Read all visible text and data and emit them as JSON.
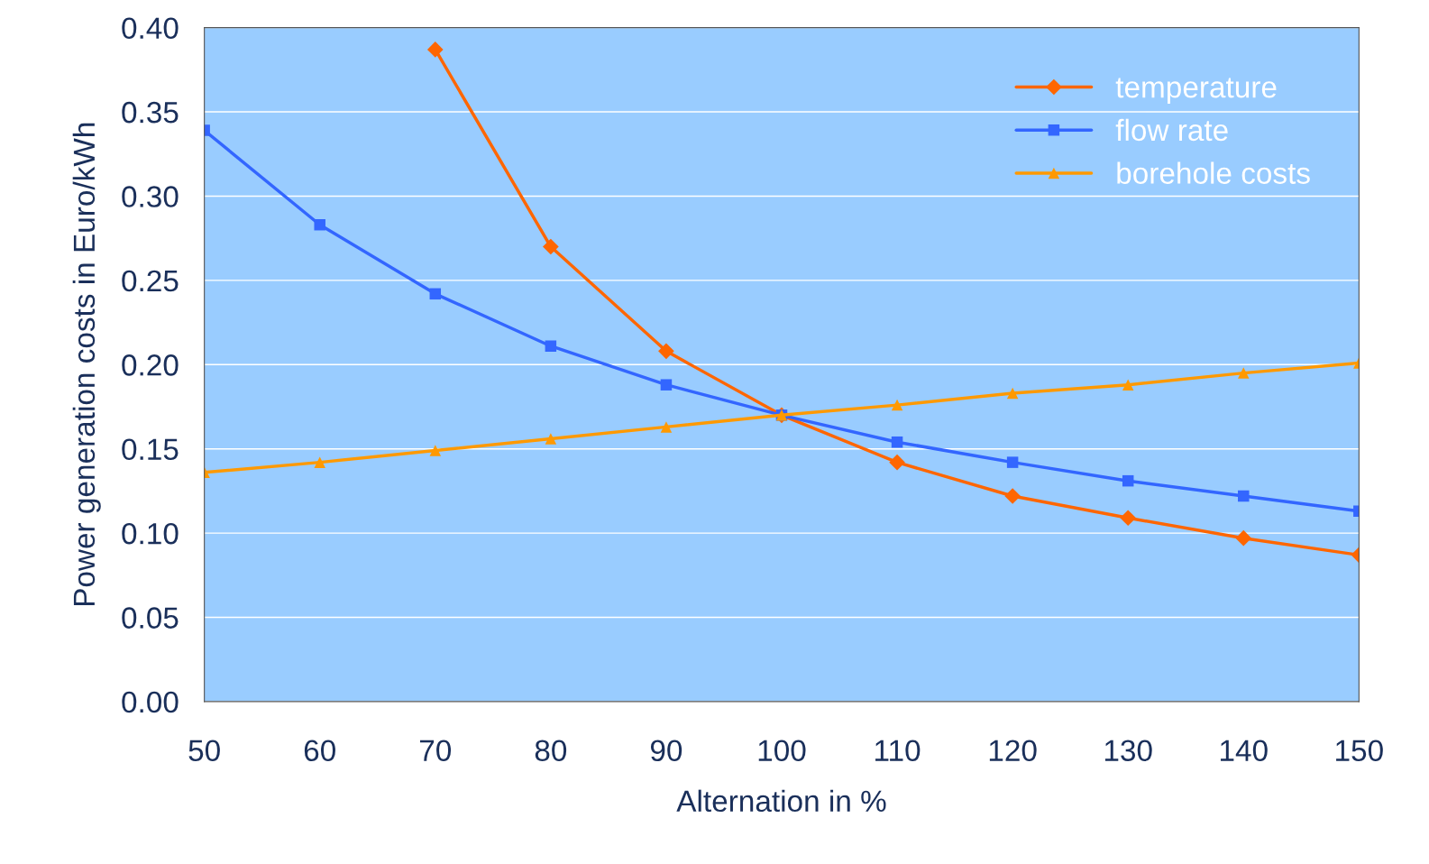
{
  "chart_data": {
    "type": "line",
    "xlabel": "Alternation in %",
    "ylabel": "Power generation costs in Euro/kWh",
    "x": [
      50,
      60,
      70,
      80,
      90,
      100,
      110,
      120,
      130,
      140,
      150
    ],
    "series": [
      {
        "name": "temperature",
        "color": "#ff6600",
        "marker": "diamond",
        "values": [
          null,
          null,
          0.387,
          0.27,
          0.208,
          0.17,
          0.142,
          0.122,
          0.109,
          0.097,
          0.087
        ]
      },
      {
        "name": "flow rate",
        "color": "#3366ff",
        "marker": "square",
        "values": [
          0.339,
          0.283,
          0.242,
          0.211,
          0.188,
          0.17,
          0.154,
          0.142,
          0.131,
          0.122,
          0.113
        ]
      },
      {
        "name": "borehole costs",
        "color": "#ff9900",
        "marker": "triangle",
        "values": [
          0.136,
          0.142,
          0.149,
          0.156,
          0.163,
          0.17,
          0.176,
          0.183,
          0.188,
          0.195,
          0.201
        ]
      }
    ],
    "xlim": [
      50,
      150
    ],
    "xticks": [
      50,
      60,
      70,
      80,
      90,
      100,
      110,
      120,
      130,
      140,
      150
    ],
    "ylim": [
      0,
      0.4
    ],
    "yticks": [
      {
        "value": 0,
        "label": "0.00"
      },
      {
        "value": 0.05,
        "label": "0.05"
      },
      {
        "value": 0.1,
        "label": "0.10"
      },
      {
        "value": 0.15,
        "label": "0.15"
      },
      {
        "value": 0.2,
        "label": "0.20"
      },
      {
        "value": 0.25,
        "label": "0.25"
      },
      {
        "value": 0.3,
        "label": "0.30"
      },
      {
        "value": 0.35,
        "label": "0.35"
      },
      {
        "value": 0.4,
        "label": "0.40"
      }
    ],
    "grid": "y",
    "legend": "top right"
  }
}
